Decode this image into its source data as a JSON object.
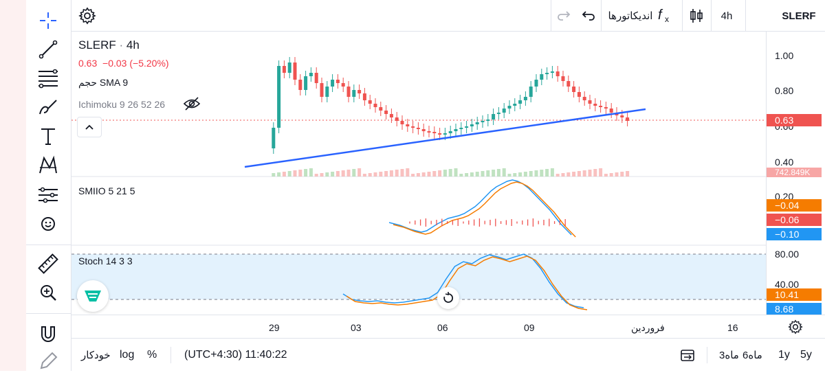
{
  "app": {
    "symbol": "SLERF",
    "interval": "4h",
    "indicators_label": "اندیکاتورها"
  },
  "legend": {
    "main_symbol": "SLERF",
    "main_interval": "4h",
    "last": "0.63",
    "change": "−0.03",
    "change_pct": "(−5.20%)",
    "volume_label": "حجم SMA 9",
    "ichimoku_label": "Ichimoku 9 26 52 26",
    "smiio_label": "SMIIO 5 21 5",
    "stoch_label": "Stoch 14 3 3"
  },
  "price_scale": {
    "main_ticks": [
      "1.00",
      "0.80",
      "0.60",
      "0.40"
    ],
    "last_price_tag": "0.63",
    "volume_tag": "742.849K",
    "smiio_ticks": [
      "0.20"
    ],
    "smiio_tags": [
      "−0.04",
      "−0.06",
      "−0.10"
    ],
    "stoch_ticks": [
      "80.00",
      "40.00"
    ],
    "stoch_tags": [
      "10.41",
      "8.68"
    ]
  },
  "time_axis": {
    "labels": [
      "29",
      "03",
      "06",
      "09",
      "فروردین",
      "16"
    ]
  },
  "bottom_bar": {
    "auto": "خودکار",
    "log": "log",
    "percent": "%",
    "timezone_time": "(UTC+4:30) 11:40:22",
    "ranges": [
      "6ماه",
      "3ماه",
      "1y",
      "5y"
    ]
  },
  "colors": {
    "up": "#26a69a",
    "down": "#ef5350",
    "trendline": "#2962ff",
    "smiio_blue": "#2196f3",
    "smiio_orange": "#f57c00",
    "stoch_band": "#e3f2fd"
  },
  "icons": {
    "left_toolbar": [
      "crosshair-icon",
      "trendline-icon",
      "fib-icon",
      "brush-icon",
      "text-icon",
      "pattern-icon",
      "prediction-icon",
      "emoji-icon",
      "ruler-icon",
      "zoom-in-icon",
      "magnet-icon",
      "lock-pencil-icon"
    ],
    "top": [
      "gear-icon",
      "redo-icon",
      "undo-icon",
      "fx-icon",
      "candles-icon"
    ]
  }
}
